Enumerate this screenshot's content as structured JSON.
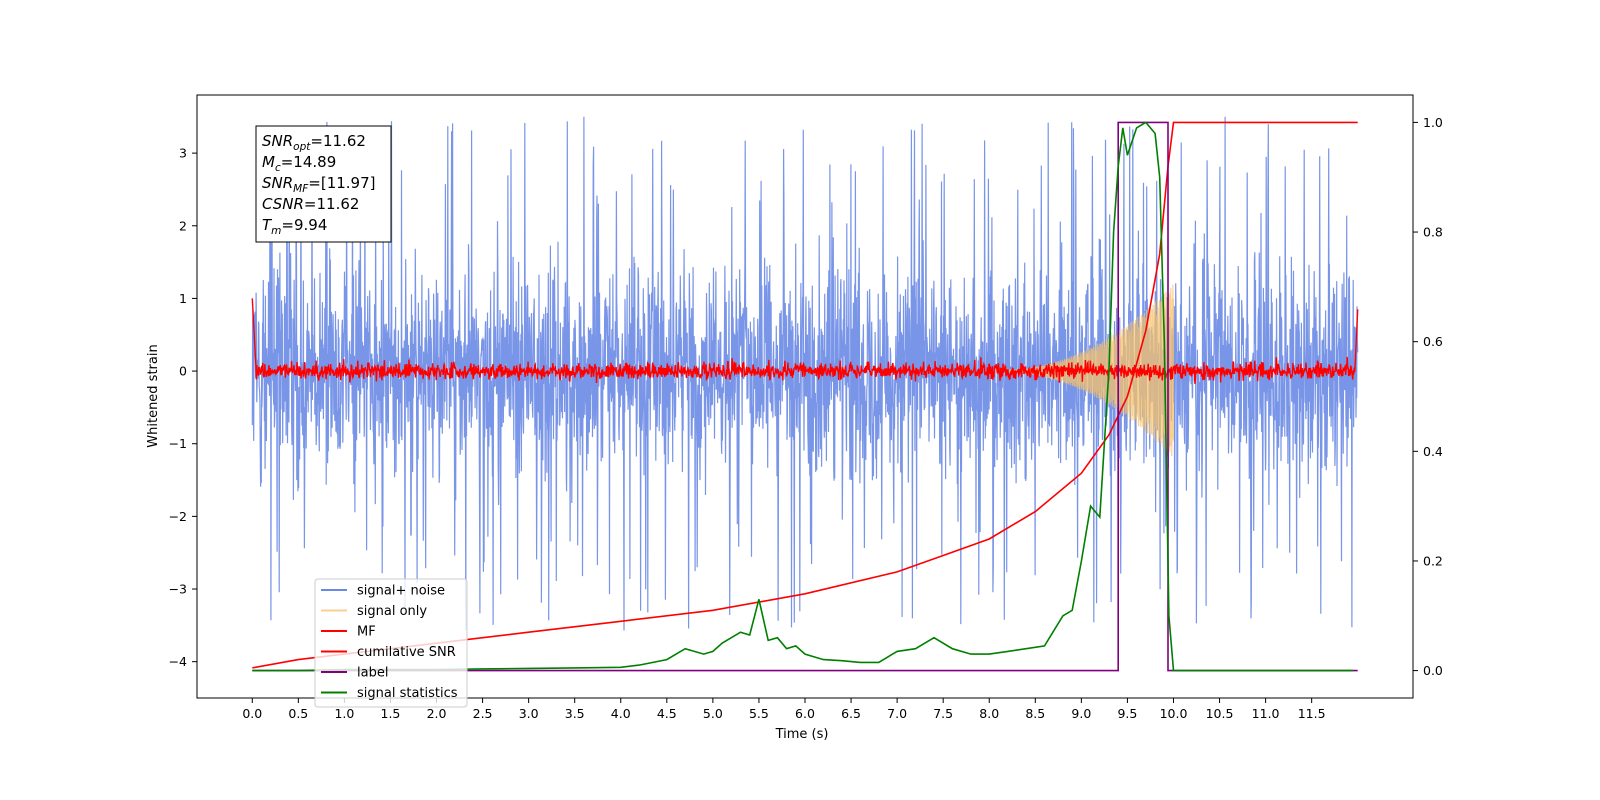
{
  "chart_data": {
    "type": "line",
    "xlabel": "Time (s)",
    "ylabel_left": "Whitened strain",
    "ylabel_right": "",
    "xlim": [
      -0.6,
      12.6
    ],
    "ylim_left": [
      -4.5,
      3.8
    ],
    "ylim_right": [
      -0.05,
      1.05
    ],
    "x_ticks": [
      "0.0",
      "0.5",
      "1.0",
      "1.5",
      "2.0",
      "2.5",
      "3.0",
      "3.5",
      "4.0",
      "4.5",
      "5.0",
      "5.5",
      "6.0",
      "6.5",
      "7.0",
      "7.5",
      "8.0",
      "8.5",
      "9.0",
      "9.5",
      "10.0",
      "10.5",
      "11.0",
      "11.5"
    ],
    "y_ticks_left": [
      "3",
      "2",
      "1",
      "0",
      "−1",
      "−2",
      "−3",
      "−4"
    ],
    "y_ticks_right": [
      "1.0",
      "0.8",
      "0.6",
      "0.4",
      "0.2",
      "0.0"
    ],
    "grid": false,
    "legend_position": "lower-left",
    "annotation": {
      "lines": [
        {
          "sym": "SNR",
          "sub": "opt",
          "val": "=11.62"
        },
        {
          "sym": "M",
          "sub": "c",
          "val": "=14.89"
        },
        {
          "sym": "SNR",
          "sub": "MF",
          "val": "=[11.97]"
        },
        {
          "sym": "CSNR",
          "sub": "",
          "val": "=11.62"
        },
        {
          "sym": "T",
          "sub": "m",
          "val": "=9.94"
        }
      ]
    },
    "series": [
      {
        "name": "signal+ noise",
        "color": "#6a89e6",
        "axis": "left",
        "style": "noise",
        "x_range": [
          0,
          12
        ],
        "amplitude": 1.3,
        "peak_range": [
          -4.15,
          3.5
        ]
      },
      {
        "name": "signal only",
        "color": "#f5c26b",
        "axis": "left",
        "style": "chirp",
        "x_range": [
          8.0,
          10.0
        ],
        "peak_amplitude": 1.2
      },
      {
        "name": "MF",
        "color": "#ff0000",
        "axis": "left",
        "style": "noise",
        "x_range": [
          0,
          12
        ],
        "amplitude": 0.15
      },
      {
        "name": "cumilative SNR",
        "color": "#ff0000",
        "axis": "right",
        "x": [
          0.0,
          0.5,
          1.0,
          2.0,
          3.0,
          4.0,
          5.0,
          6.0,
          7.0,
          7.5,
          8.0,
          8.5,
          9.0,
          9.3,
          9.5,
          9.7,
          9.85,
          9.94,
          10.0,
          12.0
        ],
        "values": [
          0.005,
          0.02,
          0.03,
          0.05,
          0.07,
          0.09,
          0.11,
          0.14,
          0.18,
          0.21,
          0.24,
          0.29,
          0.36,
          0.43,
          0.5,
          0.62,
          0.76,
          0.92,
          1.0,
          1.0
        ]
      },
      {
        "name": "label",
        "color": "#800080",
        "axis": "right",
        "x": [
          0.0,
          9.4,
          9.4,
          9.94,
          9.94,
          12.0
        ],
        "values": [
          0.0,
          0.0,
          1.0,
          1.0,
          0.0,
          0.0
        ]
      },
      {
        "name": "signal statistics",
        "color": "#008000",
        "axis": "right",
        "x": [
          0.0,
          0.5,
          1.0,
          1.5,
          2.0,
          2.5,
          3.0,
          3.5,
          4.0,
          4.2,
          4.5,
          4.7,
          4.9,
          5.0,
          5.1,
          5.2,
          5.3,
          5.4,
          5.5,
          5.6,
          5.7,
          5.8,
          5.9,
          6.0,
          6.2,
          6.4,
          6.6,
          6.8,
          7.0,
          7.2,
          7.4,
          7.6,
          7.8,
          8.0,
          8.2,
          8.4,
          8.6,
          8.8,
          8.9,
          9.0,
          9.1,
          9.2,
          9.3,
          9.35,
          9.4,
          9.45,
          9.5,
          9.6,
          9.7,
          9.8,
          9.85,
          9.9,
          9.95,
          10.0,
          10.5,
          11.0,
          11.5,
          11.95
        ],
        "values": [
          0.0,
          0.0,
          0.002,
          0.002,
          0.002,
          0.003,
          0.004,
          0.005,
          0.006,
          0.01,
          0.02,
          0.04,
          0.03,
          0.035,
          0.05,
          0.06,
          0.07,
          0.065,
          0.13,
          0.055,
          0.06,
          0.04,
          0.045,
          0.03,
          0.02,
          0.018,
          0.015,
          0.015,
          0.035,
          0.04,
          0.06,
          0.04,
          0.03,
          0.03,
          0.035,
          0.04,
          0.045,
          0.1,
          0.11,
          0.2,
          0.3,
          0.28,
          0.55,
          0.8,
          0.92,
          0.99,
          0.94,
          0.99,
          1.0,
          0.98,
          0.9,
          0.6,
          0.1,
          0.0,
          0.0,
          0.0,
          0.0,
          0.0
        ]
      }
    ]
  }
}
